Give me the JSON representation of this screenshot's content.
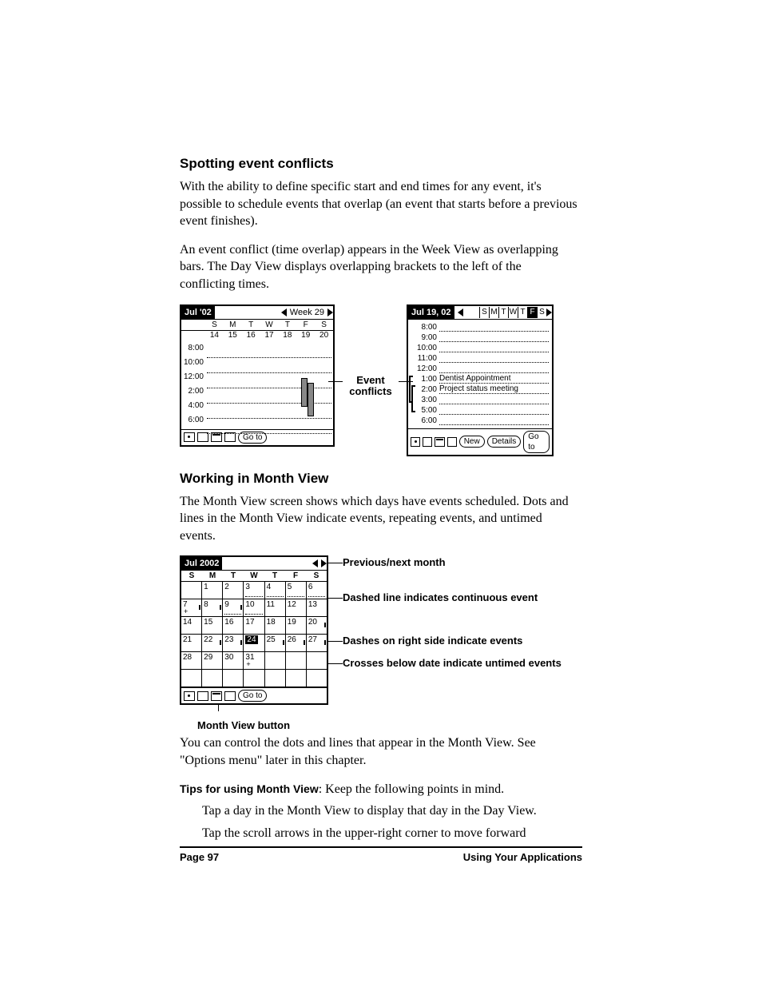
{
  "h1": "Spotting event conflicts",
  "p1": "With the ability to define specific start and end times for any event, it's possible to schedule events that overlap (an event that starts before a previous event finishes).",
  "p2": "An event conflict (time overlap) appears in the Week View as overlapping bars. The Day View displays overlapping brackets to the left of the conflicting times.",
  "week": {
    "title": "Jul '02",
    "nav": "Week 29",
    "days": [
      "S",
      "M",
      "T",
      "W",
      "T",
      "F",
      "S"
    ],
    "nums": [
      "14",
      "15",
      "16",
      "17",
      "18",
      "19",
      "20"
    ],
    "times": [
      "8:00",
      "10:00",
      "12:00",
      "2:00",
      "4:00",
      "6:00"
    ],
    "goto": "Go to"
  },
  "midlabel": "Event conflicts",
  "day": {
    "title": "Jul 19, 02",
    "strip": [
      "S",
      "M",
      "T",
      "W",
      "T",
      "F",
      "S"
    ],
    "stripSel": 5,
    "rows": [
      {
        "t": "8:00"
      },
      {
        "t": "9:00"
      },
      {
        "t": "10:00"
      },
      {
        "t": "11:00"
      },
      {
        "t": "12:00"
      },
      {
        "t": "1:00",
        "txt": "Dentist Appointment"
      },
      {
        "t": "2:00",
        "txt": "Project status meeting"
      },
      {
        "t": "3:00"
      },
      {
        "t": "5:00"
      },
      {
        "t": "6:00"
      }
    ],
    "btns": [
      "New",
      "Details",
      "Go to"
    ]
  },
  "h2": "Working in Month View",
  "p3": "The Month View screen shows which days have events scheduled. Dots and lines in the Month View indicate events, repeating events, and untimed events.",
  "month": {
    "title": "Jul 2002",
    "days": [
      "S",
      "M",
      "T",
      "W",
      "T",
      "F",
      "S"
    ],
    "grid": [
      [
        "",
        "1",
        "2",
        "3",
        "4",
        "5",
        "6"
      ],
      [
        "7",
        "8",
        "9",
        "10",
        "11",
        "12",
        "13"
      ],
      [
        "14",
        "15",
        "16",
        "17",
        "18",
        "19",
        "20"
      ],
      [
        "21",
        "22",
        "23",
        "24",
        "25",
        "26",
        "27"
      ],
      [
        "28",
        "29",
        "30",
        "31",
        "",
        "",
        ""
      ],
      [
        "",
        "",
        "",
        "",
        "",
        "",
        ""
      ]
    ],
    "goto": "Go to"
  },
  "annots": {
    "a1": "Previous/next month",
    "a2": "Dashed line indicates continuous event",
    "a3": "Dashes on right side indicate events",
    "a4": "Crosses below date indicate untimed events",
    "below": "Month View button"
  },
  "p4": "You can control the dots and lines that appear in the Month View. See \"Options menu\" later in this chapter.",
  "tipslabel": "Tips for using Month View",
  "tipstail": ": Keep the following points in mind.",
  "tip1": "Tap a day in the Month View to display that day in the Day View.",
  "tip2": "Tap the scroll arrows in the upper-right corner to move forward",
  "footer": {
    "page": "Page 97",
    "section": "Using Your Applications"
  }
}
